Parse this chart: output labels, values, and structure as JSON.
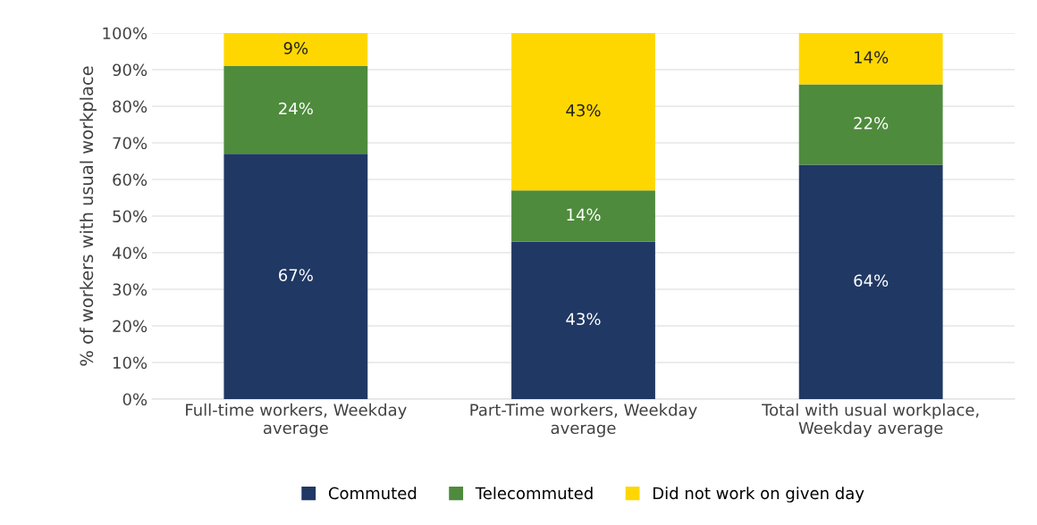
{
  "chart_data": {
    "type": "bar",
    "stacked": true,
    "categories": [
      "Full-time workers, Weekday\naverage",
      "Part-Time workers, Weekday\naverage",
      "Total with usual workplace,\nWeekday average"
    ],
    "series": [
      {
        "name": "Commuted",
        "color": "#203864",
        "values": [
          67,
          43,
          64
        ],
        "value_labels": [
          "67%",
          "43%",
          "64%"
        ]
      },
      {
        "name": "Telecommuted",
        "color": "#4e8b3d",
        "values": [
          24,
          14,
          22
        ],
        "value_labels": [
          "24%",
          "14%",
          "22%"
        ]
      },
      {
        "name": "Did not work on given day",
        "color": "#ffd700",
        "values": [
          9,
          43,
          14
        ],
        "value_labels": [
          "9%",
          "43%",
          "14%"
        ]
      }
    ],
    "ylabel": "% of workers with usual workplace",
    "ylim": [
      0,
      100
    ],
    "yticks": [
      {
        "value": 0,
        "label": "0%"
      },
      {
        "value": 10,
        "label": "10%"
      },
      {
        "value": 20,
        "label": "20%"
      },
      {
        "value": 30,
        "label": "30%"
      },
      {
        "value": 40,
        "label": "40%"
      },
      {
        "value": 50,
        "label": "50%"
      },
      {
        "value": 60,
        "label": "60%"
      },
      {
        "value": 70,
        "label": "70%"
      },
      {
        "value": 80,
        "label": "80%"
      },
      {
        "value": 90,
        "label": "90%"
      },
      {
        "value": 100,
        "label": "100%"
      }
    ],
    "grid": "y",
    "legend": "bottom"
  }
}
